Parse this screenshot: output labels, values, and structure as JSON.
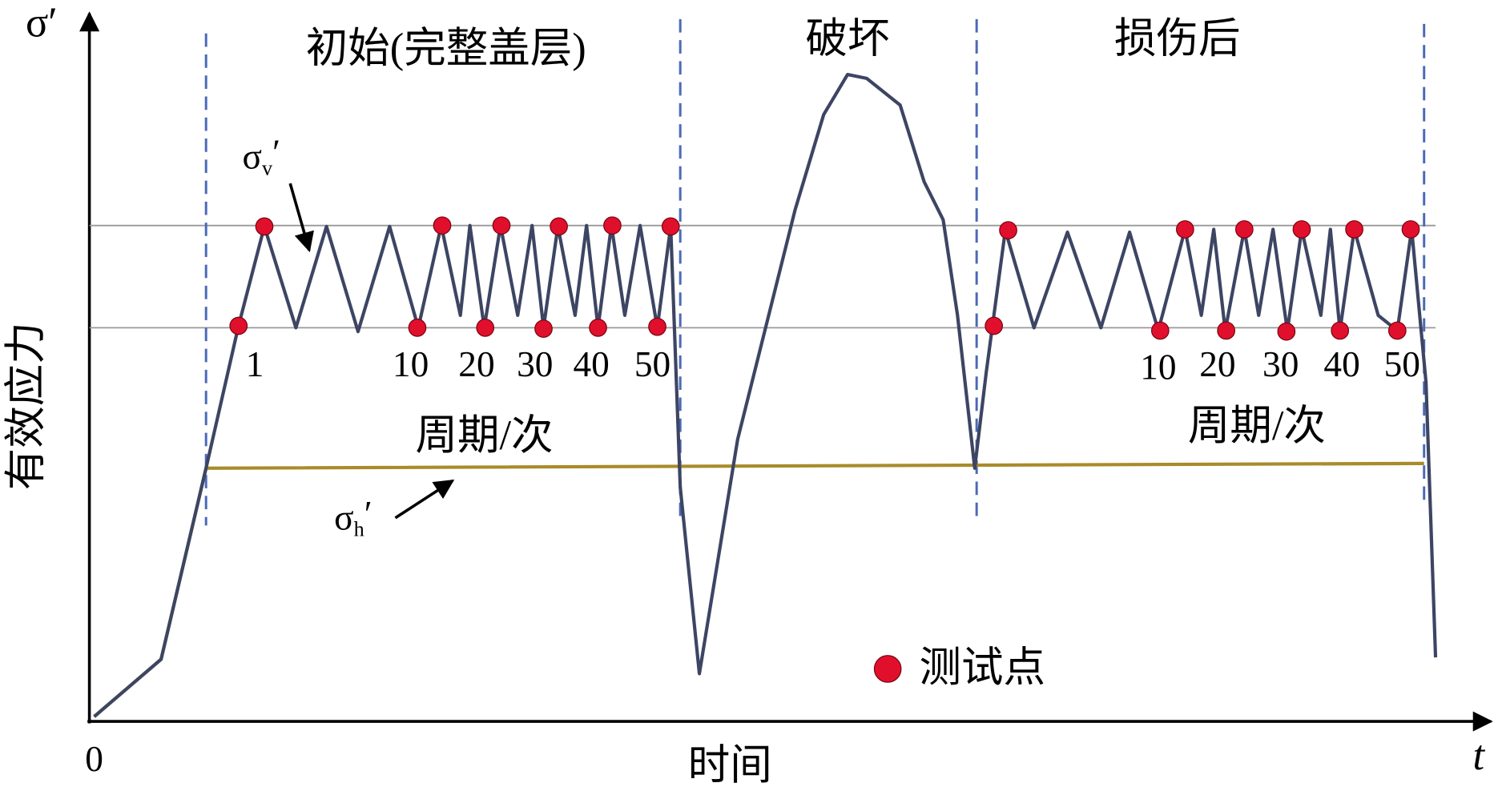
{
  "axes": {
    "y_symbol": "σ′",
    "y_label": "有效应力",
    "x_label": "时间",
    "origin": "0",
    "x_symbol": "t"
  },
  "phases": [
    "初始(完整盖层)",
    "破坏",
    "损伤后"
  ],
  "sigma_v": {
    "base": "σ",
    "sub": "v",
    "prime": "′"
  },
  "sigma_h": {
    "base": "σ",
    "sub": "h",
    "prime": "′"
  },
  "cycles_initial": {
    "labels": [
      "1",
      "10",
      "20",
      "30",
      "40",
      "50"
    ],
    "caption": "周期/次"
  },
  "cycles_damaged": {
    "labels": [
      "10",
      "20",
      "30",
      "40",
      "50"
    ],
    "caption": "周期/次"
  },
  "legend": {
    "label": "测试点"
  }
}
